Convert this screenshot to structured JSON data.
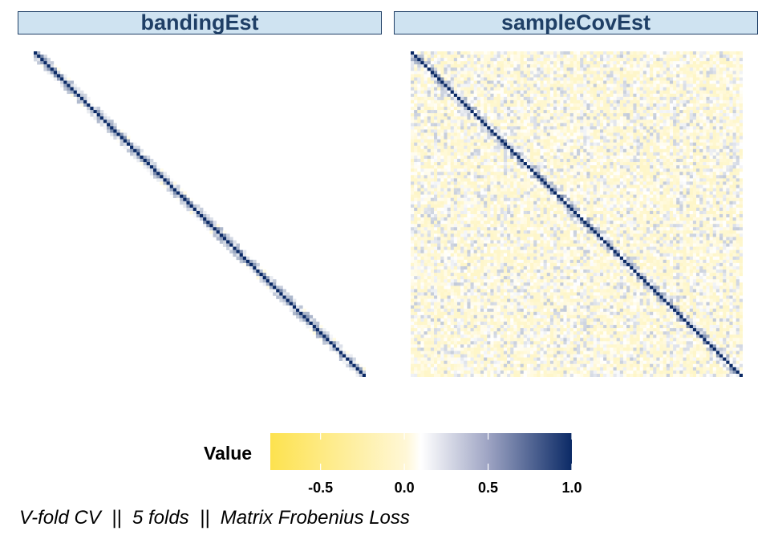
{
  "chart_data": {
    "type": "heatmap",
    "panels": [
      {
        "title": "bandingEst",
        "matrix_size": 100,
        "diagonal_value": 1.0,
        "band_values": [
          0.3,
          0.1
        ],
        "off_band_value": 0.0
      },
      {
        "title": "sampleCovEst",
        "matrix_size": 100,
        "diagonal_value": 1.0,
        "near_diagonal_values": [
          0.25,
          0.1
        ],
        "off_diagonal_noise_range": [
          -0.25,
          0.25
        ]
      }
    ],
    "legend": {
      "title": "Value",
      "range": [
        -0.8,
        1.0
      ],
      "ticks": [
        -0.5,
        0.0,
        0.5,
        1.0
      ],
      "tick_labels": [
        "-0.5",
        "0.0",
        "0.5",
        "1.0"
      ],
      "low_color": "#fde24f",
      "mid_color": "#ffffff",
      "high_color": "#0b2a66"
    },
    "caption": "V-fold CV  ||  5 folds  ||  Matrix Frobenius Loss"
  }
}
